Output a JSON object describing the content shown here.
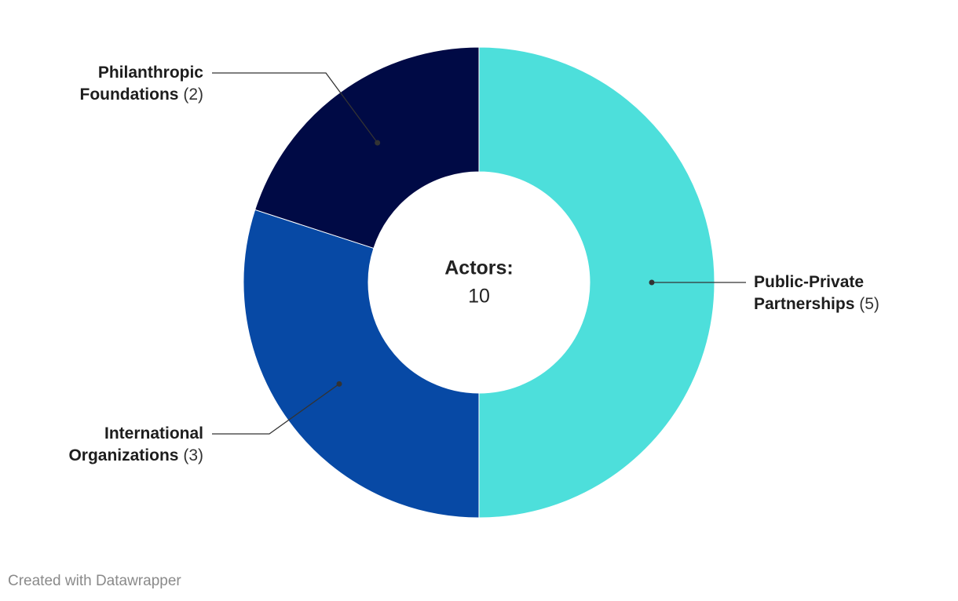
{
  "chart_data": {
    "type": "donut",
    "categories": [
      "Public-Private Partnerships",
      "International Organizations",
      "Philanthropic Foundations"
    ],
    "values": [
      5,
      3,
      2
    ],
    "value_labels": [
      "(5)",
      "(3)",
      "(2)"
    ],
    "colors": [
      "#4ddfdb",
      "#0749a5",
      "#000a45"
    ],
    "center_label": "Actors:",
    "center_value": 10,
    "footer": "Created with Datawrapper"
  }
}
